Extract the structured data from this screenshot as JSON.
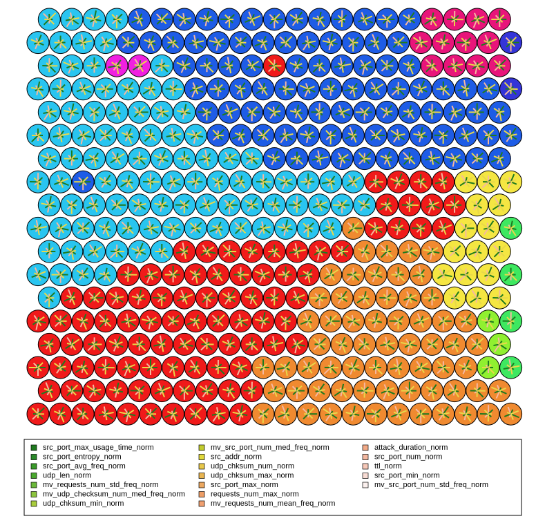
{
  "legend": {
    "items": [
      {
        "label": "src_port_max_usage_time_norm",
        "color": "#1f7a1f"
      },
      {
        "label": "src_port_entropy_norm",
        "color": "#2a8a2a"
      },
      {
        "label": "src_port_avg_freq_norm",
        "color": "#3a9a2a"
      },
      {
        "label": "udp_len_norm",
        "color": "#4aa82e"
      },
      {
        "label": "mv_requests_num_std_freq_norm",
        "color": "#6bb83a"
      },
      {
        "label": "mv_udp_checksum_num_med_freq_norm",
        "color": "#8cc43e"
      },
      {
        "label": "udp_chksum_min_norm",
        "color": "#a8cc3c"
      },
      {
        "label": "mv_src_port_num_med_freq_norm",
        "color": "#c2cc2e"
      },
      {
        "label": "src_addr_norm",
        "color": "#e0d83a"
      },
      {
        "label": "udp_chksum_num_norm",
        "color": "#e8c84a"
      },
      {
        "label": "udp_chksum_max_norm",
        "color": "#e8b450"
      },
      {
        "label": "src_port_max_norm",
        "color": "#eca860"
      },
      {
        "label": "requests_num_max_norm",
        "color": "#ee9e66"
      },
      {
        "label": "mv_requests_num_mean_freq_norm",
        "color": "#f0a070"
      },
      {
        "label": "attack_duration_norm",
        "color": "#f2aa88"
      },
      {
        "label": "src_port_num_norm",
        "color": "#f4b8a0"
      },
      {
        "label": "ttl_norm",
        "color": "#f6c8b8"
      },
      {
        "label": "src_port_min_norm",
        "color": "#f8dcd4"
      },
      {
        "label": "mv_src_port_num_std_freq_norm",
        "color": "#fbf0ee"
      }
    ]
  }
}
